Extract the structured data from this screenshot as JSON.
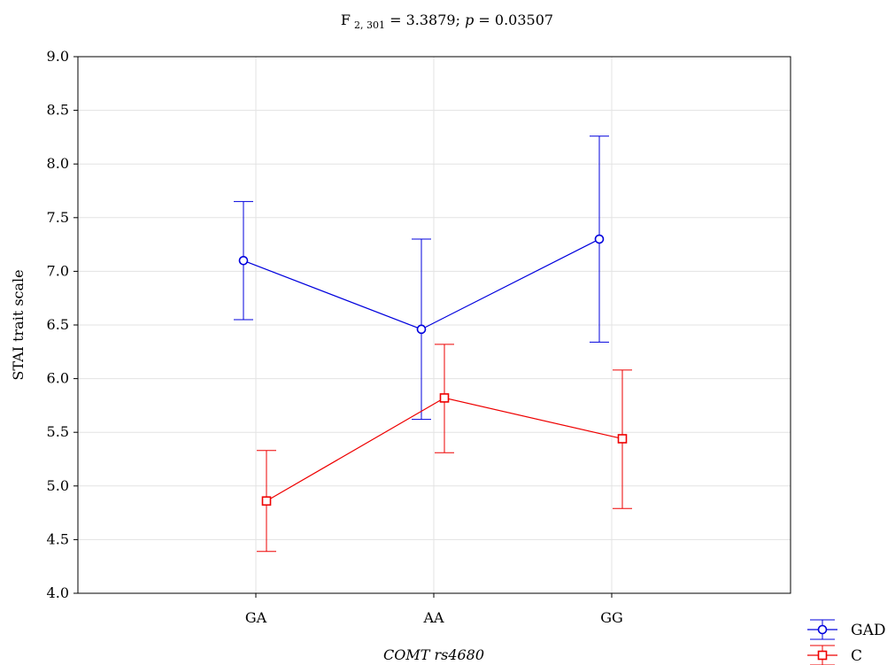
{
  "chart_data": {
    "type": "line",
    "title_parts": {
      "prefix": "F",
      "sub": "2, 301",
      "stat": " = 3.3879; ",
      "p_symbol": "p",
      "p_value": " = 0.03507"
    },
    "xlabel": "COMT rs4680",
    "ylabel": "STAI trait scale",
    "categories": [
      "GA",
      "AA",
      "GG"
    ],
    "ylim": [
      4.0,
      9.0
    ],
    "yticks": [
      "4.0",
      "4.5",
      "5.0",
      "5.5",
      "6.0",
      "6.5",
      "7.0",
      "7.5",
      "8.0",
      "8.5",
      "9.0"
    ],
    "grid": true,
    "legend_position": "bottom-right",
    "series": [
      {
        "name": "GAD",
        "color": "#0000dd",
        "marker": "circle",
        "values": [
          7.1,
          6.46,
          7.3
        ],
        "err_low": [
          6.55,
          5.62,
          6.34
        ],
        "err_high": [
          7.65,
          7.3,
          8.26
        ]
      },
      {
        "name": "C",
        "color": "#ee0000",
        "marker": "square",
        "values": [
          4.86,
          5.82,
          5.44
        ],
        "err_low": [
          4.39,
          5.31,
          4.79
        ],
        "err_high": [
          5.33,
          6.32,
          6.08
        ]
      }
    ]
  }
}
